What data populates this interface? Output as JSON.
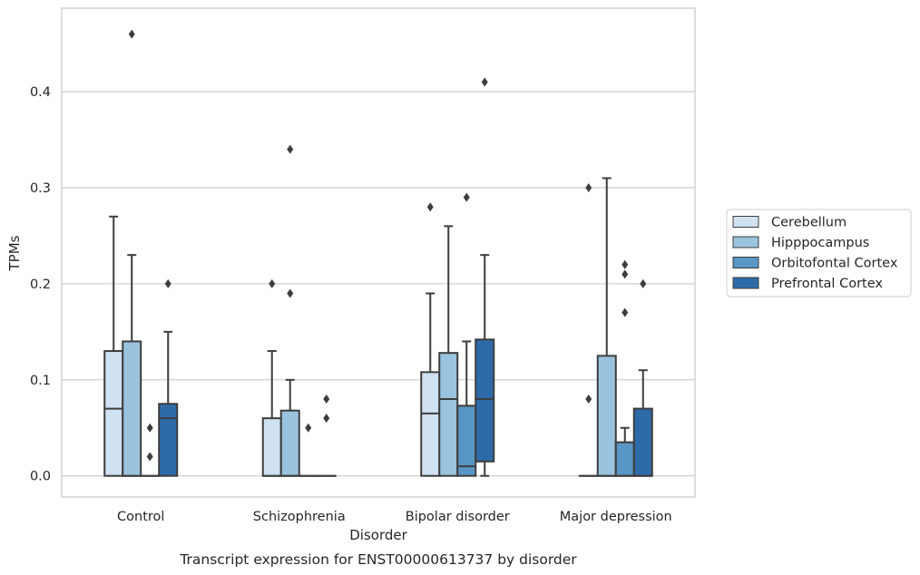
{
  "caption": "Transcript expression for ENST00000613737 by disorder",
  "chart_data": {
    "type": "box",
    "title": "",
    "xlabel": "Disorder",
    "ylabel": "TPMs",
    "ylim": [
      -0.022,
      0.487
    ],
    "yticks": [
      0.0,
      0.1,
      0.2,
      0.3,
      0.4
    ],
    "ytick_labels": [
      "0.0",
      "0.1",
      "0.2",
      "0.3",
      "0.4"
    ],
    "grid": "horizontal",
    "legend_position": "outside-right",
    "categories": [
      "Control",
      "Schizophrenia",
      "Bipolar disorder",
      "Major depression"
    ],
    "series": [
      {
        "name": "Cerebellum",
        "color": "#d0e1f1",
        "boxes": [
          {
            "whislo": 0.0,
            "q1": 0.0,
            "med": 0.07,
            "q3": 0.13,
            "whishi": 0.27,
            "fliers": []
          },
          {
            "whislo": 0.0,
            "q1": 0.0,
            "med": 0.0,
            "q3": 0.06,
            "whishi": 0.13,
            "fliers": [
              0.2
            ]
          },
          {
            "whislo": 0.0,
            "q1": 0.0,
            "med": 0.065,
            "q3": 0.108,
            "whishi": 0.19,
            "fliers": [
              0.28
            ]
          },
          {
            "whislo": 0.0,
            "q1": 0.0,
            "med": 0.0,
            "q3": 0.0,
            "whishi": 0.0,
            "fliers": [
              0.08,
              0.3
            ]
          }
        ]
      },
      {
        "name": "Hipppocampus",
        "color": "#9ac3de",
        "boxes": [
          {
            "whislo": 0.0,
            "q1": 0.0,
            "med": 0.0,
            "q3": 0.14,
            "whishi": 0.23,
            "fliers": [
              0.46
            ]
          },
          {
            "whislo": 0.0,
            "q1": 0.0,
            "med": 0.0,
            "q3": 0.068,
            "whishi": 0.1,
            "fliers": [
              0.19,
              0.34
            ]
          },
          {
            "whislo": 0.0,
            "q1": 0.0,
            "med": 0.08,
            "q3": 0.128,
            "whishi": 0.26,
            "fliers": []
          },
          {
            "whislo": 0.0,
            "q1": 0.0,
            "med": 0.0,
            "q3": 0.125,
            "whishi": 0.31,
            "fliers": []
          }
        ]
      },
      {
        "name": "Orbitofontal Cortex",
        "color": "#5897c5",
        "boxes": [
          {
            "whislo": 0.0,
            "q1": 0.0,
            "med": 0.0,
            "q3": 0.0,
            "whishi": 0.0,
            "fliers": [
              0.02,
              0.05
            ]
          },
          {
            "whislo": 0.0,
            "q1": 0.0,
            "med": 0.0,
            "q3": 0.0,
            "whishi": 0.0,
            "fliers": [
              0.05
            ]
          },
          {
            "whislo": 0.0,
            "q1": 0.0,
            "med": 0.01,
            "q3": 0.073,
            "whishi": 0.14,
            "fliers": [
              0.29
            ]
          },
          {
            "whislo": 0.0,
            "q1": 0.0,
            "med": 0.0,
            "q3": 0.035,
            "whishi": 0.05,
            "fliers": [
              0.17,
              0.21,
              0.22
            ]
          }
        ]
      },
      {
        "name": "Prefrontal Cortex",
        "color": "#2d6ba8",
        "boxes": [
          {
            "whislo": 0.0,
            "q1": 0.0,
            "med": 0.06,
            "q3": 0.075,
            "whishi": 0.15,
            "fliers": [
              0.2
            ]
          },
          {
            "whislo": 0.0,
            "q1": 0.0,
            "med": 0.0,
            "q3": 0.0,
            "whishi": 0.0,
            "fliers": [
              0.06,
              0.08
            ]
          },
          {
            "whislo": 0.0,
            "q1": 0.015,
            "med": 0.08,
            "q3": 0.142,
            "whishi": 0.23,
            "fliers": [
              0.41
            ]
          },
          {
            "whislo": 0.0,
            "q1": 0.0,
            "med": 0.0,
            "q3": 0.07,
            "whishi": 0.11,
            "fliers": [
              0.2
            ]
          }
        ]
      }
    ]
  }
}
